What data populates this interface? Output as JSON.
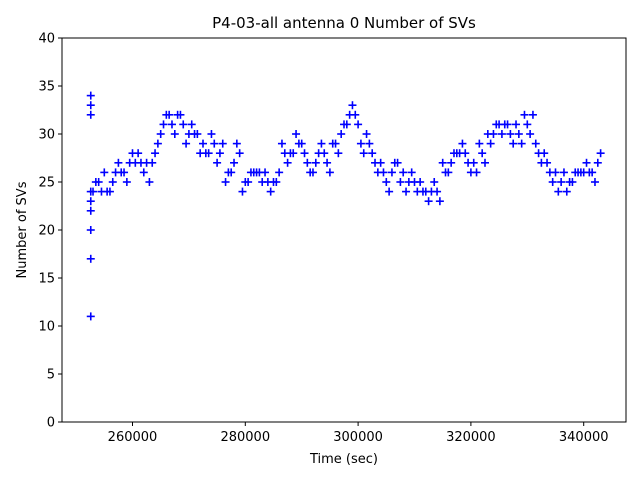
{
  "chart_data": {
    "type": "scatter",
    "title": "P4-03-all antenna 0 Number of SVs",
    "xlabel": "Time (sec)",
    "ylabel": "Number of SVs",
    "xlim": [
      247500,
      347500
    ],
    "ylim": [
      0,
      40
    ],
    "xticks": [
      260000,
      280000,
      300000,
      320000,
      340000
    ],
    "yticks": [
      0,
      5,
      10,
      15,
      20,
      25,
      30,
      35,
      40
    ],
    "marker": "+",
    "marker_color": "#0000ff",
    "grid": false,
    "series": [
      {
        "name": "antenna 0",
        "points": [
          [
            252600,
            34
          ],
          [
            252600,
            33
          ],
          [
            252600,
            32
          ],
          [
            252600,
            24
          ],
          [
            252600,
            23
          ],
          [
            252600,
            22
          ],
          [
            252600,
            20
          ],
          [
            252600,
            17
          ],
          [
            252600,
            11
          ],
          [
            253000,
            24
          ],
          [
            253500,
            25
          ],
          [
            254000,
            25
          ],
          [
            254500,
            24
          ],
          [
            255000,
            26
          ],
          [
            255500,
            24
          ],
          [
            256000,
            24
          ],
          [
            256500,
            25
          ],
          [
            257000,
            26
          ],
          [
            257500,
            27
          ],
          [
            258000,
            26
          ],
          [
            258500,
            26
          ],
          [
            259000,
            25
          ],
          [
            259500,
            27
          ],
          [
            260000,
            28
          ],
          [
            260500,
            27
          ],
          [
            261000,
            28
          ],
          [
            261500,
            27
          ],
          [
            262000,
            26
          ],
          [
            262500,
            27
          ],
          [
            263000,
            25
          ],
          [
            263500,
            27
          ],
          [
            264000,
            28
          ],
          [
            264500,
            29
          ],
          [
            265000,
            30
          ],
          [
            265500,
            31
          ],
          [
            266000,
            32
          ],
          [
            266500,
            32
          ],
          [
            267000,
            31
          ],
          [
            267500,
            30
          ],
          [
            268000,
            32
          ],
          [
            268500,
            32
          ],
          [
            269000,
            31
          ],
          [
            269500,
            29
          ],
          [
            270000,
            30
          ],
          [
            270500,
            31
          ],
          [
            271000,
            30
          ],
          [
            271500,
            30
          ],
          [
            272000,
            28
          ],
          [
            272500,
            29
          ],
          [
            273000,
            28
          ],
          [
            273500,
            28
          ],
          [
            274000,
            30
          ],
          [
            274500,
            29
          ],
          [
            275000,
            27
          ],
          [
            275500,
            28
          ],
          [
            276000,
            29
          ],
          [
            276500,
            25
          ],
          [
            277000,
            26
          ],
          [
            277500,
            26
          ],
          [
            278000,
            27
          ],
          [
            278500,
            29
          ],
          [
            279000,
            28
          ],
          [
            279500,
            24
          ],
          [
            280000,
            25
          ],
          [
            280500,
            25
          ],
          [
            281000,
            26
          ],
          [
            281500,
            26
          ],
          [
            282000,
            26
          ],
          [
            282500,
            26
          ],
          [
            283000,
            25
          ],
          [
            283500,
            26
          ],
          [
            284000,
            25
          ],
          [
            284500,
            24
          ],
          [
            285000,
            25
          ],
          [
            285500,
            25
          ],
          [
            286000,
            26
          ],
          [
            286500,
            29
          ],
          [
            287000,
            28
          ],
          [
            287500,
            27
          ],
          [
            288000,
            28
          ],
          [
            288500,
            28
          ],
          [
            289000,
            30
          ],
          [
            289500,
            29
          ],
          [
            290000,
            29
          ],
          [
            290500,
            28
          ],
          [
            291000,
            27
          ],
          [
            291500,
            26
          ],
          [
            292000,
            26
          ],
          [
            292500,
            27
          ],
          [
            293000,
            28
          ],
          [
            293500,
            29
          ],
          [
            294000,
            28
          ],
          [
            294500,
            27
          ],
          [
            295000,
            26
          ],
          [
            295500,
            29
          ],
          [
            296000,
            29
          ],
          [
            296500,
            28
          ],
          [
            297000,
            30
          ],
          [
            297500,
            31
          ],
          [
            298000,
            31
          ],
          [
            298500,
            32
          ],
          [
            299000,
            33
          ],
          [
            299500,
            32
          ],
          [
            300000,
            31
          ],
          [
            300500,
            29
          ],
          [
            301000,
            28
          ],
          [
            301500,
            30
          ],
          [
            302000,
            29
          ],
          [
            302500,
            28
          ],
          [
            303000,
            27
          ],
          [
            303500,
            26
          ],
          [
            304000,
            27
          ],
          [
            304500,
            26
          ],
          [
            305000,
            25
          ],
          [
            305500,
            24
          ],
          [
            306000,
            26
          ],
          [
            306500,
            27
          ],
          [
            307000,
            27
          ],
          [
            307500,
            25
          ],
          [
            308000,
            26
          ],
          [
            308500,
            24
          ],
          [
            309000,
            25
          ],
          [
            309500,
            26
          ],
          [
            310000,
            25
          ],
          [
            310500,
            24
          ],
          [
            311000,
            25
          ],
          [
            311500,
            24
          ],
          [
            312000,
            24
          ],
          [
            312500,
            23
          ],
          [
            313000,
            24
          ],
          [
            313500,
            25
          ],
          [
            314000,
            24
          ],
          [
            314500,
            23
          ],
          [
            315000,
            27
          ],
          [
            315500,
            26
          ],
          [
            316000,
            26
          ],
          [
            316500,
            27
          ],
          [
            317000,
            28
          ],
          [
            317500,
            28
          ],
          [
            318000,
            28
          ],
          [
            318500,
            29
          ],
          [
            319000,
            28
          ],
          [
            319500,
            27
          ],
          [
            320000,
            26
          ],
          [
            320500,
            27
          ],
          [
            321000,
            26
          ],
          [
            321500,
            29
          ],
          [
            322000,
            28
          ],
          [
            322500,
            27
          ],
          [
            323000,
            30
          ],
          [
            323500,
            29
          ],
          [
            324000,
            30
          ],
          [
            324500,
            31
          ],
          [
            325000,
            31
          ],
          [
            325500,
            30
          ],
          [
            326000,
            31
          ],
          [
            326500,
            31
          ],
          [
            327000,
            30
          ],
          [
            327500,
            29
          ],
          [
            328000,
            31
          ],
          [
            328500,
            30
          ],
          [
            329000,
            29
          ],
          [
            329500,
            32
          ],
          [
            330000,
            31
          ],
          [
            330500,
            30
          ],
          [
            331000,
            32
          ],
          [
            331500,
            29
          ],
          [
            332000,
            28
          ],
          [
            332500,
            27
          ],
          [
            333000,
            28
          ],
          [
            333500,
            27
          ],
          [
            334000,
            26
          ],
          [
            334500,
            25
          ],
          [
            335000,
            26
          ],
          [
            335500,
            24
          ],
          [
            336000,
            25
          ],
          [
            336500,
            26
          ],
          [
            337000,
            24
          ],
          [
            337500,
            25
          ],
          [
            338000,
            25
          ],
          [
            338500,
            26
          ],
          [
            339000,
            26
          ],
          [
            339500,
            26
          ],
          [
            340000,
            26
          ],
          [
            340500,
            27
          ],
          [
            341000,
            26
          ],
          [
            341500,
            26
          ],
          [
            342000,
            25
          ],
          [
            342500,
            27
          ],
          [
            343000,
            28
          ]
        ]
      }
    ]
  }
}
